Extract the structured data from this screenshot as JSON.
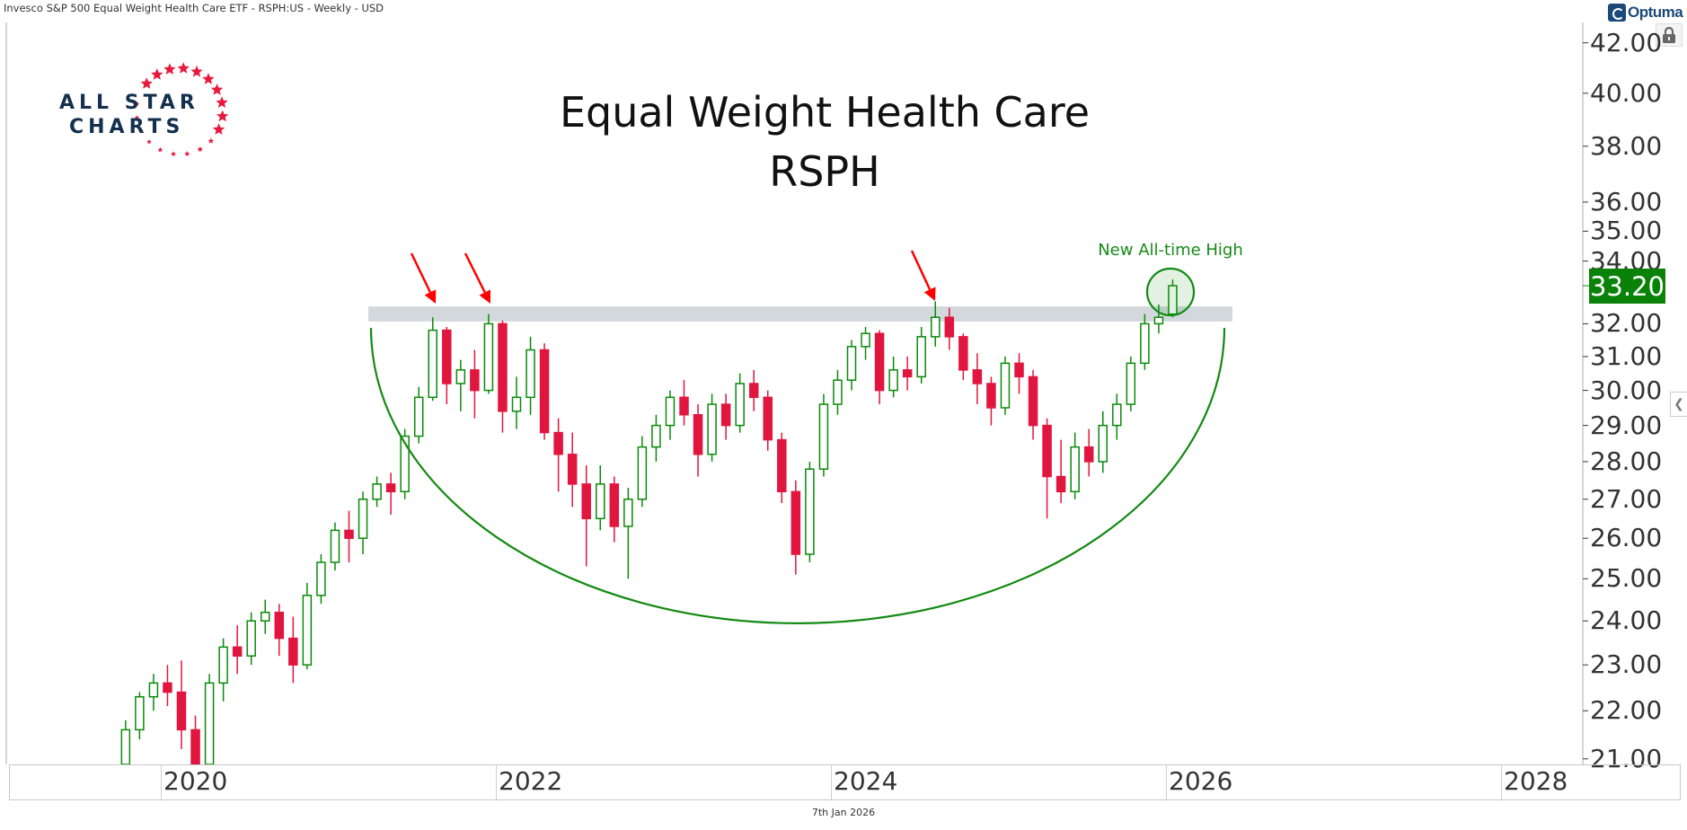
{
  "header": {
    "instrument": "Invesco S&P 500 Equal Weight Health Care ETF - RSPH:US - Weekly - USD"
  },
  "branding": {
    "optuma": "Optuma",
    "logo_line1": "ALL STAR",
    "logo_line2": "CHARTS"
  },
  "footer": {
    "date": "7th Jan 2026"
  },
  "colors": {
    "up": "#0a8a0a",
    "down": "#e0163f",
    "band": "#d3d8dd",
    "arc": "#138a13",
    "arrow": "#ff0000",
    "price_tag": "#0a820a"
  },
  "chart_data": {
    "type": "candlestick",
    "title": "Equal Weight Health Care",
    "subtitle": "RSPH",
    "yscale": "log",
    "ylim": [
      21,
      42.5
    ],
    "xlim": [
      2019.0,
      2028.6
    ],
    "y_ticks": [
      "42.00",
      "40.00",
      "38.00",
      "36.00",
      "35.00",
      "34.00",
      "32.00",
      "31.00",
      "30.00",
      "29.00",
      "28.00",
      "27.00",
      "26.00",
      "25.00",
      "24.00",
      "23.00",
      "22.00",
      "21.00"
    ],
    "x_ticks": [
      "2020",
      "2022",
      "2024",
      "2026",
      "2028"
    ],
    "last_price": "33.20",
    "annotation": "New All-time High",
    "resistance_band": [
      32.07,
      32.54
    ],
    "candles": [
      [
        "2019-10",
        20.8,
        21.8,
        20.6,
        21.6
      ],
      [
        "2019-11",
        21.6,
        22.4,
        21.4,
        22.3
      ],
      [
        "2019-12",
        22.3,
        22.8,
        22.0,
        22.6
      ],
      [
        "2020-01",
        22.6,
        23.0,
        22.1,
        22.4
      ],
      [
        "2020-02",
        22.4,
        23.1,
        21.2,
        21.6
      ],
      [
        "2020-03",
        21.6,
        21.9,
        19.5,
        20.8
      ],
      [
        "2020-04",
        20.8,
        22.8,
        20.6,
        22.6
      ],
      [
        "2020-05",
        22.6,
        23.6,
        22.2,
        23.4
      ],
      [
        "2020-06",
        23.4,
        23.9,
        22.8,
        23.2
      ],
      [
        "2020-07",
        23.2,
        24.2,
        23.0,
        24.0
      ],
      [
        "2020-08",
        24.0,
        24.5,
        23.7,
        24.2
      ],
      [
        "2020-09",
        24.2,
        24.4,
        23.2,
        23.6
      ],
      [
        "2020-10",
        23.6,
        24.1,
        22.6,
        23.0
      ],
      [
        "2020-11",
        23.0,
        24.9,
        22.9,
        24.6
      ],
      [
        "2020-12",
        24.6,
        25.6,
        24.4,
        25.4
      ],
      [
        "2021-01",
        25.4,
        26.4,
        25.2,
        26.2
      ],
      [
        "2021-02",
        26.2,
        26.7,
        25.4,
        26.0
      ],
      [
        "2021-03",
        26.0,
        27.2,
        25.6,
        27.0
      ],
      [
        "2021-04",
        27.0,
        27.6,
        26.8,
        27.4
      ],
      [
        "2021-05",
        27.4,
        27.7,
        26.6,
        27.2
      ],
      [
        "2021-06",
        27.2,
        28.9,
        27.0,
        28.7
      ],
      [
        "2021-07",
        28.7,
        30.1,
        28.5,
        29.8
      ],
      [
        "2021-08",
        29.8,
        32.2,
        29.7,
        31.8
      ],
      [
        "2021-09",
        31.8,
        31.9,
        29.6,
        30.2
      ],
      [
        "2021-10",
        30.2,
        30.9,
        29.4,
        30.6
      ],
      [
        "2021-11",
        30.6,
        31.2,
        29.2,
        30.0
      ],
      [
        "2021-12",
        30.0,
        32.3,
        29.9,
        32.0
      ],
      [
        "2022-01",
        32.0,
        32.1,
        28.8,
        29.4
      ],
      [
        "2022-02",
        29.4,
        30.4,
        28.9,
        29.8
      ],
      [
        "2022-03",
        29.8,
        31.6,
        29.3,
        31.2
      ],
      [
        "2022-04",
        31.2,
        31.4,
        28.6,
        28.8
      ],
      [
        "2022-05",
        28.8,
        29.2,
        27.2,
        28.2
      ],
      [
        "2022-06",
        28.2,
        28.8,
        26.8,
        27.4
      ],
      [
        "2022-07",
        27.4,
        27.9,
        25.3,
        26.5
      ],
      [
        "2022-08",
        26.5,
        27.9,
        26.2,
        27.4
      ],
      [
        "2022-09",
        27.4,
        27.6,
        25.9,
        26.3
      ],
      [
        "2022-10",
        26.3,
        27.3,
        25.0,
        27.0
      ],
      [
        "2022-11",
        27.0,
        28.7,
        26.8,
        28.4
      ],
      [
        "2022-12",
        28.4,
        29.3,
        28.0,
        29.0
      ],
      [
        "2023-01",
        29.0,
        30.0,
        28.6,
        29.8
      ],
      [
        "2023-02",
        29.8,
        30.3,
        29.0,
        29.3
      ],
      [
        "2023-03",
        29.3,
        29.6,
        27.6,
        28.2
      ],
      [
        "2023-04",
        28.2,
        29.9,
        28.0,
        29.6
      ],
      [
        "2023-05",
        29.6,
        29.9,
        28.6,
        29.0
      ],
      [
        "2023-06",
        29.0,
        30.5,
        28.8,
        30.2
      ],
      [
        "2023-07",
        30.2,
        30.6,
        29.4,
        29.8
      ],
      [
        "2023-08",
        29.8,
        30.0,
        28.3,
        28.6
      ],
      [
        "2023-09",
        28.6,
        28.8,
        26.9,
        27.2
      ],
      [
        "2023-10",
        27.2,
        27.5,
        25.1,
        25.6
      ],
      [
        "2023-11",
        25.6,
        28.0,
        25.4,
        27.8
      ],
      [
        "2023-12",
        27.8,
        29.9,
        27.6,
        29.6
      ],
      [
        "2024-01",
        29.6,
        30.6,
        29.3,
        30.3
      ],
      [
        "2024-02",
        30.3,
        31.5,
        30.0,
        31.3
      ],
      [
        "2024-03",
        31.3,
        31.9,
        30.9,
        31.7
      ],
      [
        "2024-04",
        31.7,
        31.8,
        29.6,
        30.0
      ],
      [
        "2024-05",
        30.0,
        31.0,
        29.8,
        30.6
      ],
      [
        "2024-06",
        30.6,
        31.0,
        30.0,
        30.4
      ],
      [
        "2024-07",
        30.4,
        31.9,
        30.2,
        31.6
      ],
      [
        "2024-08",
        31.6,
        32.7,
        31.3,
        32.2
      ],
      [
        "2024-09",
        32.2,
        32.5,
        31.2,
        31.6
      ],
      [
        "2024-10",
        31.6,
        31.7,
        30.3,
        30.6
      ],
      [
        "2024-11",
        30.6,
        31.1,
        29.6,
        30.2
      ],
      [
        "2024-12",
        30.2,
        30.4,
        29.0,
        29.5
      ],
      [
        "2025-01",
        29.5,
        31.0,
        29.3,
        30.8
      ],
      [
        "2025-02",
        30.8,
        31.1,
        29.9,
        30.4
      ],
      [
        "2025-03",
        30.4,
        30.6,
        28.6,
        29.0
      ],
      [
        "2025-04",
        29.0,
        29.2,
        26.5,
        27.6
      ],
      [
        "2025-05",
        27.6,
        28.6,
        26.9,
        27.2
      ],
      [
        "2025-06",
        27.2,
        28.8,
        27.0,
        28.4
      ],
      [
        "2025-07",
        28.4,
        28.9,
        27.6,
        28.0
      ],
      [
        "2025-08",
        28.0,
        29.4,
        27.7,
        29.0
      ],
      [
        "2025-09",
        29.0,
        29.9,
        28.6,
        29.6
      ],
      [
        "2025-10",
        29.6,
        31.0,
        29.4,
        30.8
      ],
      [
        "2025-11",
        30.8,
        32.3,
        30.6,
        32.0
      ],
      [
        "2025-12",
        32.0,
        32.6,
        31.7,
        32.2
      ],
      [
        "2026-01",
        32.3,
        33.4,
        32.2,
        33.2
      ]
    ]
  }
}
